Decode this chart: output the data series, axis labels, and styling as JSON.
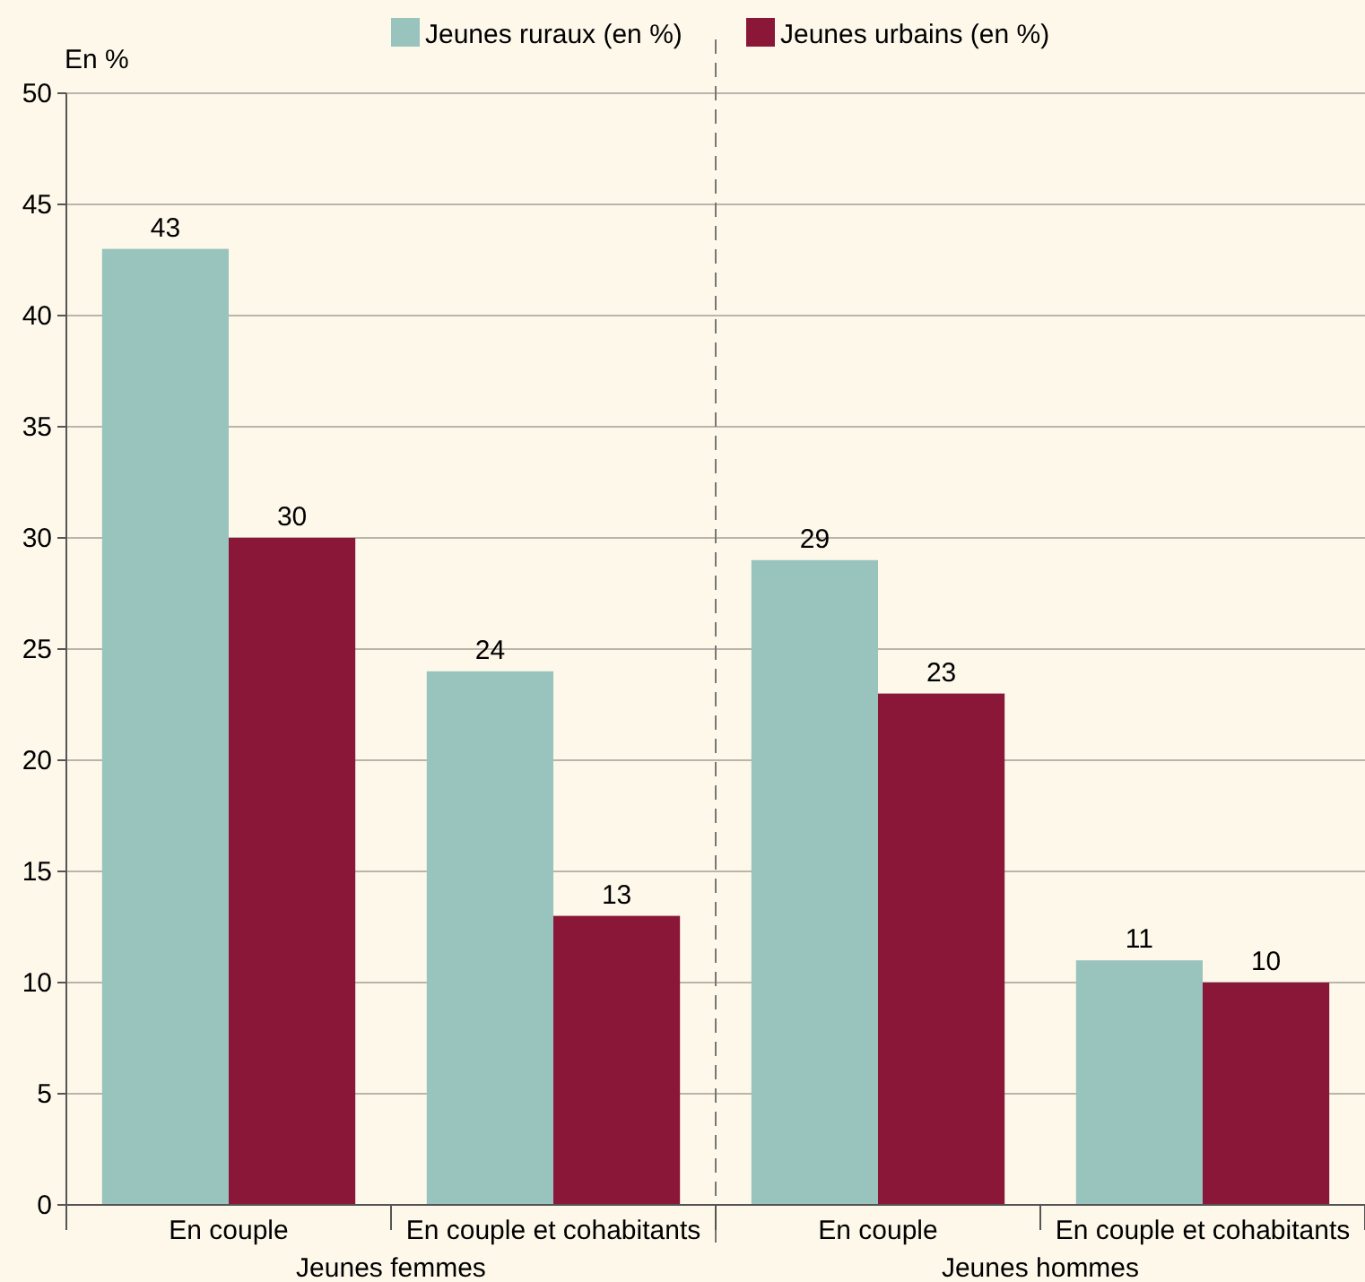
{
  "chart_data": {
    "type": "bar",
    "ylabel": "En %",
    "categories": [
      "En couple",
      "En couple et cohabitants",
      "En couple",
      "En couple et cohabitants"
    ],
    "series": [
      {
        "name": "Jeunes ruraux (en %)",
        "color": "#98c4bd",
        "values": [
          43,
          24,
          29,
          11
        ]
      },
      {
        "name": "Jeunes urbains (en %)",
        "color": "#8a1738",
        "values": [
          30,
          13,
          23,
          10
        ]
      }
    ],
    "ylim": [
      0,
      50
    ],
    "yticks": [
      0,
      5,
      10,
      15,
      20,
      25,
      30,
      35,
      40,
      45,
      50
    ],
    "grid": "y",
    "legend": "top",
    "data_labels": true,
    "annotations": [
      "Jeunes femmes",
      "Jeunes hommes"
    ]
  }
}
